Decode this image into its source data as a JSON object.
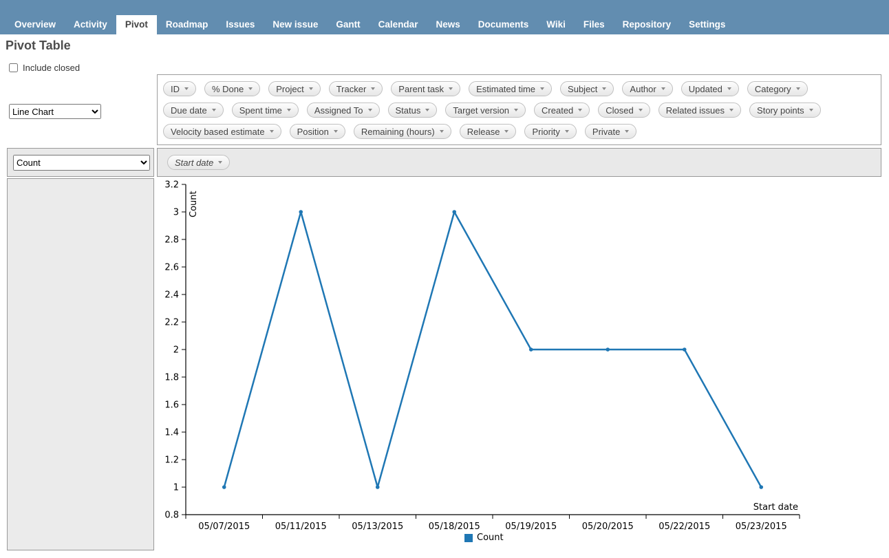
{
  "nav": {
    "active_tab": "Pivot",
    "tabs": [
      "Overview",
      "Activity",
      "Pivot",
      "Roadmap",
      "Issues",
      "New issue",
      "Gantt",
      "Calendar",
      "News",
      "Documents",
      "Wiki",
      "Files",
      "Repository",
      "Settings"
    ]
  },
  "page": {
    "title": "Pivot Table"
  },
  "filters": {
    "include_closed_label": "Include closed",
    "include_closed_checked": false
  },
  "controls": {
    "renderer_value": "Line Chart",
    "aggregator_value": "Count"
  },
  "fields": {
    "rows": [
      [
        "ID",
        "% Done",
        "Project",
        "Tracker",
        "Parent task",
        "Estimated time",
        "Subject",
        "Author",
        "Updated",
        "Category",
        "Due date",
        "Spent time"
      ],
      [
        "Assigned To",
        "Status",
        "Target version",
        "Created",
        "Closed",
        "Related issues",
        "Story points",
        "Velocity based estimate",
        "Position"
      ],
      [
        "Remaining (hours)",
        "Release",
        "Priority",
        "Private"
      ]
    ]
  },
  "pivot": {
    "col_field": "Start date"
  },
  "chart_data": {
    "type": "line",
    "title": "",
    "x": [
      "05/07/2015",
      "05/11/2015",
      "05/13/2015",
      "05/18/2015",
      "05/19/2015",
      "05/20/2015",
      "05/22/2015",
      "05/23/2015"
    ],
    "series": [
      {
        "name": "Count",
        "values": [
          1,
          3,
          1,
          3,
          2,
          2,
          2,
          1
        ],
        "color": "#1f77b4"
      }
    ],
    "xlabel": "Start date",
    "ylabel": "Count",
    "ylim": [
      0.8,
      3.2
    ],
    "ytick_step": 0.2,
    "grid": false,
    "legend_position": "bottom"
  }
}
